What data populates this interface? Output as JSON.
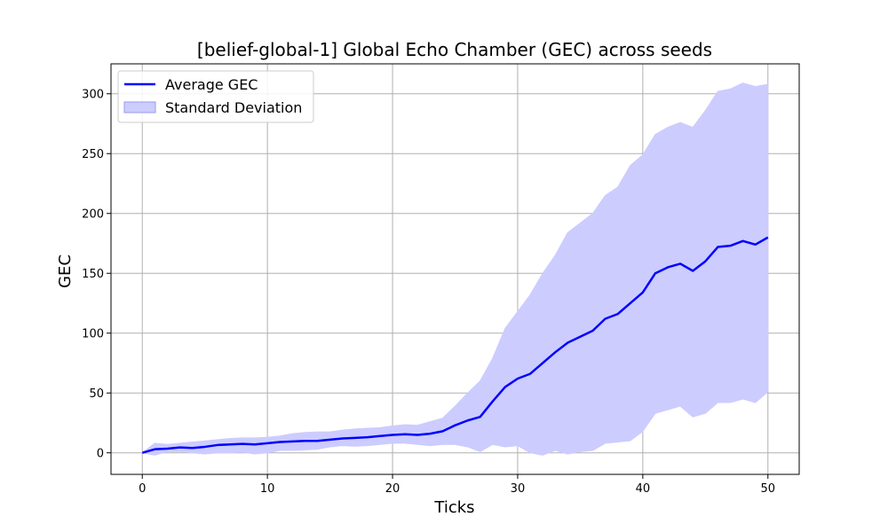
{
  "chart_data": {
    "type": "line",
    "title": "[belief-global-1] Global Echo Chamber (GEC) across seeds",
    "xlabel": "Ticks",
    "ylabel": "GEC",
    "xlim": [
      -2.5,
      52.5
    ],
    "ylim": [
      -18,
      325
    ],
    "xticks": [
      0,
      10,
      20,
      30,
      40,
      50
    ],
    "yticks": [
      0,
      50,
      100,
      150,
      200,
      250,
      300
    ],
    "grid": true,
    "legend_position": "top-left",
    "x": [
      0,
      1,
      2,
      3,
      4,
      5,
      6,
      7,
      8,
      9,
      10,
      11,
      12,
      13,
      14,
      15,
      16,
      17,
      18,
      19,
      20,
      21,
      22,
      23,
      24,
      25,
      26,
      27,
      28,
      29,
      30,
      31,
      32,
      33,
      34,
      35,
      36,
      37,
      38,
      39,
      40,
      41,
      42,
      43,
      44,
      45,
      46,
      47,
      48,
      49,
      50
    ],
    "series": [
      {
        "name": "Average GEC",
        "kind": "line",
        "color": "#0000ff",
        "values": [
          0,
          3,
          3.5,
          4.5,
          4,
          5,
          6.5,
          7,
          7.5,
          7,
          8,
          9,
          9.5,
          10,
          10,
          11,
          12,
          12.5,
          13,
          14,
          15,
          15.5,
          15,
          16,
          18,
          23,
          27,
          30,
          43,
          55,
          62,
          66,
          75,
          84,
          92,
          97,
          102,
          112,
          116,
          125,
          134,
          150,
          155,
          158,
          152,
          160,
          172,
          173,
          177,
          174,
          180
        ]
      },
      {
        "name": "Standard Deviation",
        "kind": "band",
        "color": "#ccccff",
        "upper": [
          0,
          8,
          7,
          8,
          9,
          10,
          11,
          12,
          12.5,
          12.5,
          13,
          14,
          16,
          17,
          17.5,
          17.5,
          19,
          20,
          20.5,
          21,
          22.5,
          23.5,
          23,
          26,
          29,
          39,
          50,
          60,
          79,
          104,
          118,
          132,
          150,
          165,
          184,
          192,
          200,
          215,
          222,
          240,
          249,
          266,
          272,
          276,
          272,
          286,
          302,
          304,
          309,
          306,
          308
        ],
        "lower": [
          0,
          -2,
          1,
          1,
          0,
          -1,
          0,
          0,
          0.5,
          -1,
          0,
          2,
          2,
          2.5,
          3,
          5,
          6,
          5.5,
          6,
          7,
          8,
          8,
          7,
          6,
          7,
          7,
          5,
          1,
          7,
          5,
          6,
          0,
          -2,
          2,
          -1,
          1,
          2,
          8,
          9,
          10,
          18,
          33,
          36,
          39,
          30,
          33,
          42,
          42,
          45,
          42,
          51
        ]
      }
    ]
  }
}
